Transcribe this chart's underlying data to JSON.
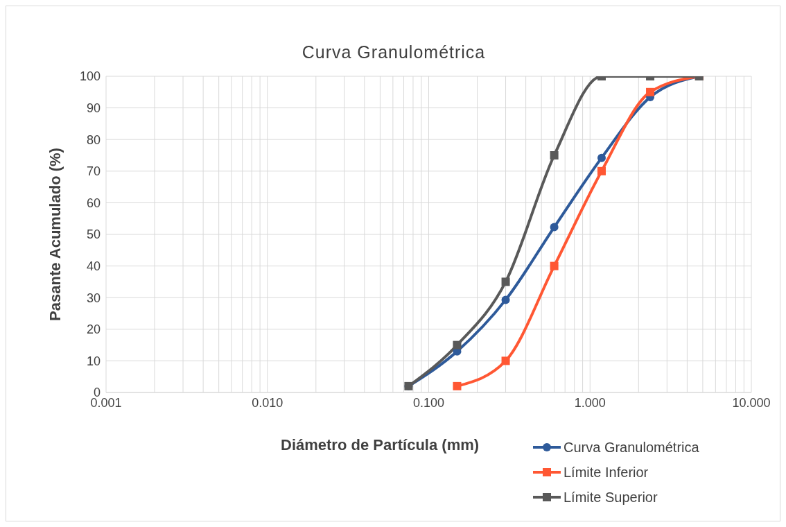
{
  "chart_data": {
    "type": "line",
    "title": "Curva Granulométrica",
    "xlabel": "Diámetro de Partícula (mm)",
    "ylabel": "Pasante Acumulado (%)",
    "log": "x",
    "series": [
      {
        "name": "Curva Granulométrica",
        "color": "#2e5a9a",
        "marker": "circle",
        "x": [
          0.075,
          0.15,
          0.3,
          0.6,
          1.18,
          2.36,
          4.75
        ],
        "values": [
          2,
          13,
          29.3,
          52.3,
          74.2,
          93.4,
          100
        ]
      },
      {
        "name": "Límite Inferior",
        "color": "#ff5733",
        "marker": "square",
        "x": [
          0.15,
          0.3,
          0.6,
          1.18,
          2.36,
          4.75
        ],
        "values": [
          2,
          10,
          40,
          70,
          95,
          100
        ]
      },
      {
        "name": "Límite Superior",
        "color": "#595959",
        "marker": "square",
        "x": [
          0.075,
          0.15,
          0.3,
          0.6,
          1.18,
          2.36,
          4.75
        ],
        "values": [
          2,
          15,
          35,
          75,
          100,
          100,
          100
        ]
      }
    ],
    "xlim": [
      0.001,
      10
    ],
    "xticks": [
      {
        "value": 0.001,
        "label": "0.001"
      },
      {
        "value": 0.002,
        "label": null
      },
      {
        "value": 0.003,
        "label": null
      },
      {
        "value": 0.004,
        "label": null
      },
      {
        "value": 0.005,
        "label": null
      },
      {
        "value": 0.006,
        "label": null
      },
      {
        "value": 0.007,
        "label": null
      },
      {
        "value": 0.008,
        "label": null
      },
      {
        "value": 0.009,
        "label": null
      },
      {
        "value": 0.01,
        "label": "0.010"
      },
      {
        "value": 0.02,
        "label": null
      },
      {
        "value": 0.03,
        "label": null
      },
      {
        "value": 0.04,
        "label": null
      },
      {
        "value": 0.05,
        "label": null
      },
      {
        "value": 0.06,
        "label": null
      },
      {
        "value": 0.07,
        "label": null
      },
      {
        "value": 0.08,
        "label": null
      },
      {
        "value": 0.09,
        "label": null
      },
      {
        "value": 0.1,
        "label": "0.100"
      },
      {
        "value": 0.2,
        "label": null
      },
      {
        "value": 0.3,
        "label": null
      },
      {
        "value": 0.4,
        "label": null
      },
      {
        "value": 0.5,
        "label": null
      },
      {
        "value": 0.6,
        "label": null
      },
      {
        "value": 0.7,
        "label": null
      },
      {
        "value": 0.8,
        "label": null
      },
      {
        "value": 0.9,
        "label": null
      },
      {
        "value": 1,
        "label": "1.000"
      },
      {
        "value": 2,
        "label": null
      },
      {
        "value": 3,
        "label": null
      },
      {
        "value": 4,
        "label": null
      },
      {
        "value": 5,
        "label": null
      },
      {
        "value": 6,
        "label": null
      },
      {
        "value": 7,
        "label": null
      },
      {
        "value": 8,
        "label": null
      },
      {
        "value": 9,
        "label": null
      },
      {
        "value": 10,
        "label": "10.000"
      }
    ],
    "ylim": [
      0,
      100
    ],
    "yticks": [
      0,
      10,
      20,
      30,
      40,
      50,
      60,
      70,
      80,
      90,
      100
    ],
    "grid": true,
    "legend": "bottom right"
  }
}
